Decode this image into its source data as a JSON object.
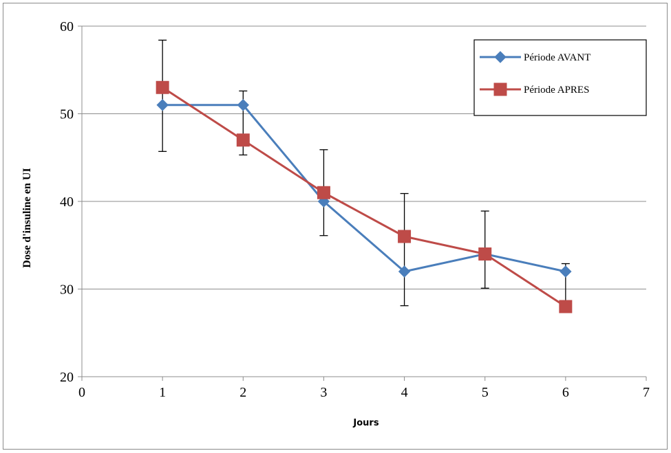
{
  "chart_data": {
    "type": "line",
    "title": "",
    "xlabel": "Jours",
    "ylabel": "Dose d'insuline en UI",
    "xlim": [
      0,
      7
    ],
    "ylim": [
      20,
      60
    ],
    "x_ticks": [
      0,
      1,
      2,
      3,
      4,
      5,
      6,
      7
    ],
    "y_ticks": [
      20,
      30,
      40,
      50,
      60
    ],
    "grid": "horizontal",
    "legend_position": "top-right",
    "series": [
      {
        "name": "Période AVANT",
        "color": "#4a7ebb",
        "marker": "diamond",
        "x": [
          1,
          2,
          3,
          4,
          5,
          6
        ],
        "values": [
          51,
          51,
          40,
          32,
          34,
          32
        ]
      },
      {
        "name": "Période APRES",
        "color": "#be4b48",
        "marker": "square",
        "x": [
          1,
          2,
          3,
          4,
          5,
          6
        ],
        "values": [
          53,
          47,
          41,
          36,
          34,
          28
        ]
      }
    ],
    "error_bars": [
      {
        "x": 1,
        "low": 45.7,
        "high": 58.4
      },
      {
        "x": 2,
        "low": 45.3,
        "high": 52.6
      },
      {
        "x": 3,
        "low": 36.1,
        "high": 45.9
      },
      {
        "x": 4,
        "low": 28.1,
        "high": 40.9
      },
      {
        "x": 5,
        "low": 30.1,
        "high": 38.9
      },
      {
        "x": 6,
        "low": 28.5,
        "high": 32.9
      }
    ]
  }
}
